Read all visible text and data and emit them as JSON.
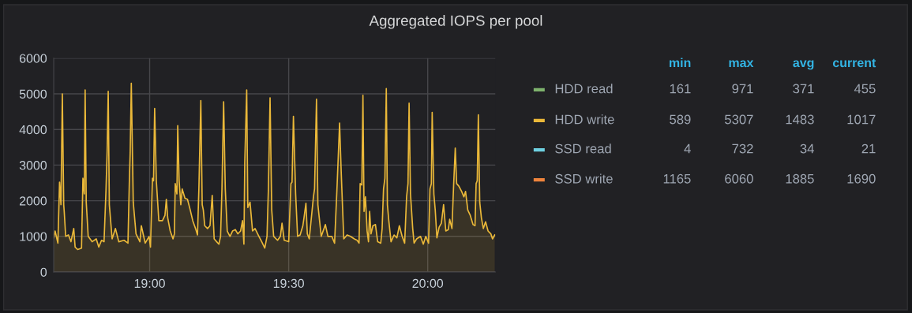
{
  "chart_data": [
    {
      "type": "area",
      "title": "Aggregated IOPS per pool",
      "xlim": [
        18.655,
        20.243
      ],
      "xticks": [
        {
          "value": 19,
          "label": "19:00"
        },
        {
          "value": 19.5,
          "label": "19:30"
        },
        {
          "value": 20,
          "label": "20:00"
        }
      ],
      "ylim": [
        0,
        6000
      ],
      "yticks": [
        0,
        1000,
        2000,
        3000,
        4000,
        5000,
        6000
      ],
      "grid": true,
      "x": [
        18.655,
        18.66,
        18.67,
        18.676,
        18.681,
        18.686,
        18.691,
        18.693,
        18.698,
        18.708,
        18.717,
        18.727,
        18.732,
        18.741,
        18.755,
        18.76,
        18.765,
        18.768,
        18.772,
        18.779,
        18.793,
        18.808,
        18.817,
        18.827,
        18.836,
        18.843,
        18.847,
        18.851,
        18.855,
        18.865,
        18.877,
        18.889,
        18.908,
        18.922,
        18.927,
        18.93,
        18.934,
        18.941,
        18.951,
        18.965,
        18.97,
        18.984,
        18.998,
        19.003,
        19.01,
        19.014,
        19.018,
        19.024,
        19.033,
        19.046,
        19.055,
        19.06,
        19.065,
        19.074,
        19.084,
        19.089,
        19.092,
        19.098,
        19.101,
        19.106,
        19.112,
        19.117,
        19.127,
        19.136,
        19.146,
        19.155,
        19.165,
        19.172,
        19.177,
        19.184,
        19.189,
        19.193,
        19.198,
        19.208,
        19.217,
        19.225,
        19.232,
        19.241,
        19.249,
        19.255,
        19.26,
        19.266,
        19.272,
        19.279,
        19.289,
        19.298,
        19.308,
        19.317,
        19.327,
        19.334,
        19.339,
        19.342,
        19.349,
        19.353,
        19.361,
        19.37,
        19.379,
        19.393,
        19.403,
        19.414,
        19.422,
        19.427,
        19.433,
        19.439,
        19.446,
        19.46,
        19.47,
        19.476,
        19.484,
        19.5,
        19.508,
        19.512,
        19.517,
        19.525,
        19.532,
        19.541,
        19.551,
        19.555,
        19.562,
        19.567,
        19.574,
        19.589,
        19.593,
        19.6,
        19.605,
        19.617,
        19.632,
        19.641,
        19.655,
        19.665,
        19.674,
        19.683,
        19.689,
        19.698,
        19.71,
        19.722,
        19.736,
        19.746,
        19.753,
        19.757,
        19.763,
        19.767,
        19.771,
        19.776,
        19.782,
        19.787,
        19.791,
        19.796,
        19.803,
        19.812,
        19.82,
        19.831,
        19.836,
        19.841,
        19.846,
        19.851,
        19.855,
        19.86,
        19.868,
        19.879,
        19.889,
        19.898,
        19.908,
        19.917,
        19.924,
        19.929,
        19.933,
        19.938,
        19.946,
        19.951,
        19.96,
        19.974,
        19.984,
        19.993,
        20.003,
        20.008,
        20.013,
        20.016,
        20.022,
        20.027,
        20.033,
        20.041,
        20.049,
        20.057,
        20.065,
        20.074,
        20.079,
        20.087,
        20.093,
        20.099,
        20.104,
        20.112,
        20.122,
        20.13,
        20.136,
        20.144,
        20.153,
        20.163,
        20.17,
        20.174,
        20.178,
        20.182,
        20.187,
        20.193,
        20.2,
        20.208,
        20.217,
        20.227,
        20.233,
        20.241
      ],
      "series": [
        {
          "color": "#eab839",
          "values": [
            960,
            1150,
            810,
            2520,
            1890,
            5000,
            1890,
            1670,
            1000,
            1040,
            850,
            1220,
            700,
            630,
            670,
            2630,
            2190,
            5110,
            1960,
            1000,
            850,
            930,
            700,
            890,
            850,
            2300,
            3370,
            5070,
            1890,
            930,
            1220,
            850,
            890,
            810,
            2560,
            3370,
            5300,
            1960,
            1070,
            850,
            1300,
            810,
            1000,
            700,
            2630,
            2560,
            4590,
            2560,
            1440,
            1440,
            1590,
            2040,
            1520,
            1150,
            930,
            1070,
            2480,
            2190,
            4110,
            2560,
            1890,
            2330,
            2070,
            2040,
            1740,
            1440,
            1220,
            1040,
            2330,
            4810,
            1890,
            1740,
            1300,
            1220,
            1300,
            2150,
            930,
            850,
            780,
            1000,
            2330,
            4780,
            2330,
            1150,
            1000,
            1150,
            1190,
            1070,
            1150,
            1440,
            780,
            3070,
            5110,
            1810,
            1960,
            1150,
            1220,
            1000,
            850,
            670,
            1000,
            2330,
            4890,
            1740,
            1000,
            890,
            1000,
            1370,
            890,
            850,
            2480,
            2520,
            4370,
            2190,
            1000,
            1040,
            1300,
            1520,
            1930,
            1070,
            930,
            2110,
            2330,
            4850,
            1890,
            1000,
            1330,
            1000,
            1000,
            810,
            2410,
            4180,
            2780,
            930,
            1040,
            1000,
            930,
            890,
            810,
            2480,
            2440,
            4960,
            1700,
            2110,
            1150,
            850,
            1700,
            1070,
            1300,
            1330,
            850,
            810,
            1220,
            2330,
            2630,
            5150,
            1890,
            1440,
            850,
            1040,
            960,
            1300,
            1000,
            810,
            2110,
            2480,
            4740,
            2190,
            1220,
            810,
            930,
            1000,
            780,
            1000,
            810,
            2330,
            2480,
            4480,
            2190,
            1740,
            960,
            1260,
            1370,
            1890,
            1150,
            1190,
            1480,
            1220,
            2410,
            3480,
            2480,
            2410,
            2260,
            2110,
            2260,
            1740,
            1590,
            1330,
            1300,
            2480,
            2560,
            4410,
            1960,
            1520,
            1220,
            1410,
            1150,
            1070,
            930,
            1040
          ]
        }
      ]
    },
    {
      "type": "other",
      "data_labels": true,
      "categories": [
        "min",
        "max",
        "avg",
        "current"
      ],
      "series": [
        {
          "name": "HDD read",
          "color": "#7eb26d",
          "values": [
            161,
            971,
            371,
            455
          ]
        },
        {
          "name": "HDD write",
          "color": "#eab839",
          "values": [
            589,
            5307,
            1483,
            1017
          ]
        },
        {
          "name": "SSD read",
          "color": "#6ed0e0",
          "values": [
            4,
            732,
            34,
            21
          ]
        },
        {
          "name": "SSD write",
          "color": "#ef843c",
          "values": [
            1165,
            6060,
            1885,
            1690
          ]
        }
      ]
    }
  ]
}
